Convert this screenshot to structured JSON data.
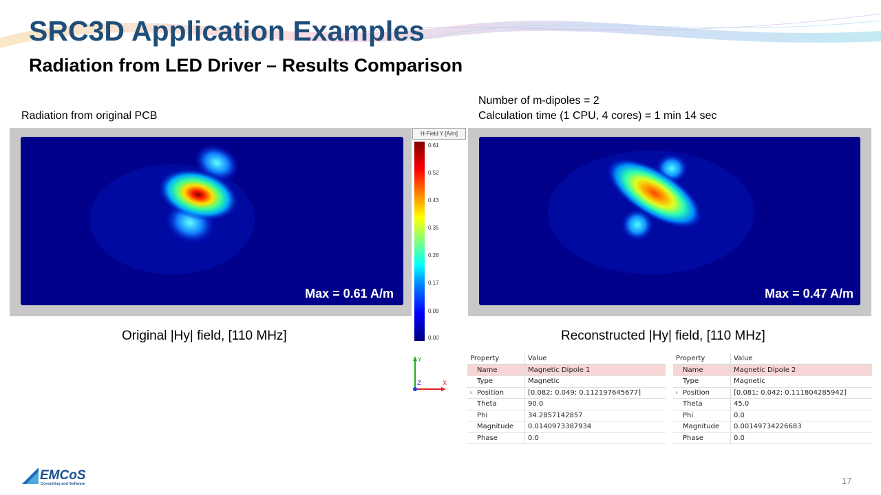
{
  "slide": {
    "title": "SRC3D Application Examples",
    "subtitle": "Radiation from LED Driver – Results Comparison",
    "page_number": "17"
  },
  "left": {
    "heading": "Radiation from original PCB",
    "max_label": "Max = 0.61 A/m",
    "caption": "Original |Hy| field, [110 MHz]"
  },
  "right": {
    "info_line1": "Number of m-dipoles = 2",
    "info_line2": "Calculation time (1 CPU, 4 cores) = 1 min 14 sec",
    "max_label": "Max = 0.47 A/m",
    "caption": "Reconstructed |Hy| field, [110 MHz]"
  },
  "colorbar": {
    "title": "H-Field Y [A/m]",
    "ticks": [
      "0.61",
      "0.52",
      "0.43",
      "0.35",
      "0.26",
      "0.17",
      "0.09",
      "0.00"
    ]
  },
  "axes_gizmo": {
    "y": "Y",
    "z": "Z",
    "x": "X"
  },
  "property_tables": [
    {
      "header": {
        "property": "Property",
        "value": "Value"
      },
      "rows": [
        {
          "k": "Name",
          "v": "Magnetic Dipole 1"
        },
        {
          "k": "Type",
          "v": "Magnetic"
        },
        {
          "k": "Position",
          "v": "[0.082; 0.049; 0.112197645677]"
        },
        {
          "k": "Theta",
          "v": "90.0"
        },
        {
          "k": "Phi",
          "v": "34.2857142857"
        },
        {
          "k": "Magnitude",
          "v": "0.0140973387934"
        },
        {
          "k": "Phase",
          "v": "0.0"
        }
      ]
    },
    {
      "header": {
        "property": "Property",
        "value": "Value"
      },
      "rows": [
        {
          "k": "Name",
          "v": "Magnetic Dipole 2"
        },
        {
          "k": "Type",
          "v": "Magnetic"
        },
        {
          "k": "Position",
          "v": "[0.081; 0.042; 0.111804285942]"
        },
        {
          "k": "Theta",
          "v": "45.0"
        },
        {
          "k": "Phi",
          "v": "0.0"
        },
        {
          "k": "Magnitude",
          "v": "0.00149734226683"
        },
        {
          "k": "Phase",
          "v": "0.0"
        }
      ]
    }
  ],
  "logo": {
    "text": "EMCoS",
    "tagline": "Consulting and Software"
  },
  "colors": {
    "title": "#1f4e79",
    "field_background": "#00008b",
    "selected_row": "#f9d6d6"
  }
}
